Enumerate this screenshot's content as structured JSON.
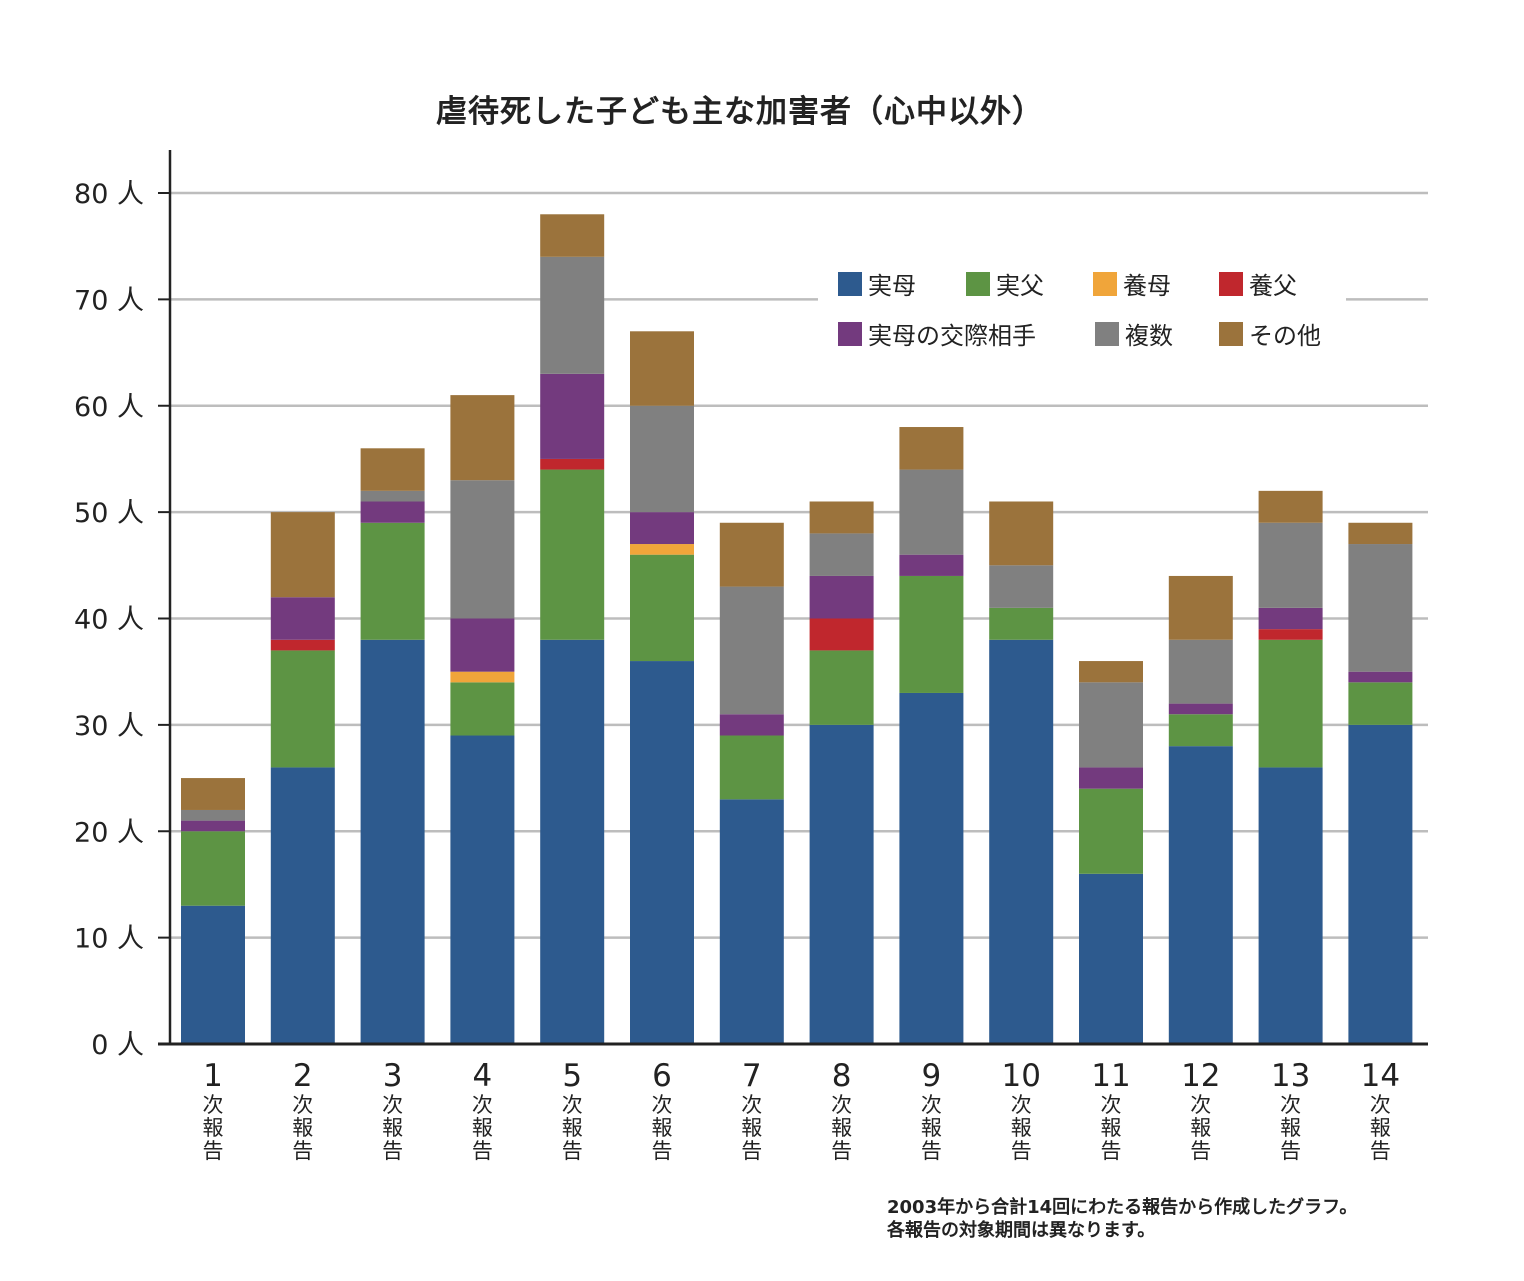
{
  "chart_data": {
    "type": "bar",
    "stacked": true,
    "title": "虐待死した子ども主な加害者（心中以外）",
    "xlabel": "",
    "ylabel": "",
    "ylim": [
      0,
      80
    ],
    "ytick_values": [
      0,
      10,
      20,
      30,
      40,
      50,
      60,
      70,
      80
    ],
    "ytick_unit": "人",
    "categories": [
      "1",
      "2",
      "3",
      "4",
      "5",
      "6",
      "7",
      "8",
      "9",
      "10",
      "11",
      "12",
      "13",
      "14"
    ],
    "category_suffix": [
      "次",
      "報",
      "告"
    ],
    "grid": true,
    "legend_position": "top-right",
    "series": [
      {
        "name": "実母",
        "color": "#2d5a8e",
        "values": [
          13,
          26,
          38,
          29,
          38,
          36,
          23,
          30,
          33,
          38,
          16,
          28,
          26,
          30
        ]
      },
      {
        "name": "実父",
        "color": "#5d9444",
        "values": [
          7,
          11,
          11,
          5,
          16,
          10,
          6,
          7,
          11,
          3,
          8,
          3,
          12,
          4
        ]
      },
      {
        "name": "養母",
        "color": "#f0a53a",
        "values": [
          0,
          0,
          0,
          1,
          0,
          1,
          0,
          0,
          0,
          0,
          0,
          0,
          0,
          0
        ]
      },
      {
        "name": "養父",
        "color": "#c0272d",
        "values": [
          0,
          1,
          0,
          0,
          1,
          0,
          0,
          3,
          0,
          0,
          0,
          0,
          1,
          0
        ]
      },
      {
        "name": "実母の交際相手",
        "color": "#733a7e",
        "values": [
          1,
          4,
          2,
          5,
          8,
          3,
          2,
          4,
          2,
          0,
          2,
          1,
          2,
          1
        ]
      },
      {
        "name": "複数",
        "color": "#808080",
        "values": [
          1,
          0,
          1,
          13,
          11,
          10,
          12,
          4,
          8,
          4,
          8,
          6,
          8,
          12
        ]
      },
      {
        "name": "その他",
        "color": "#9b733c",
        "values": [
          3,
          8,
          4,
          8,
          4,
          7,
          6,
          3,
          4,
          6,
          2,
          6,
          3,
          2
        ]
      }
    ]
  },
  "footnote": {
    "line1": "2003年から合計14回にわたる報告から作成したグラフ。",
    "line2": "各報告の対象期間は異なります。"
  }
}
